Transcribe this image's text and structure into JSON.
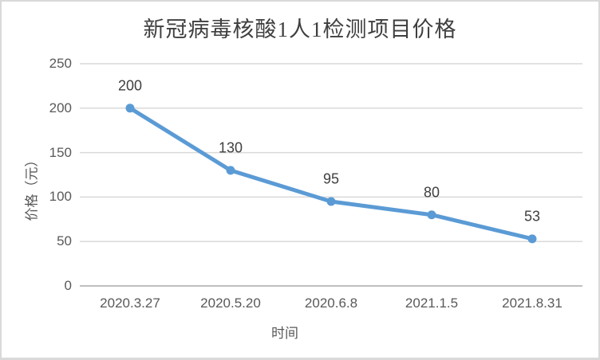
{
  "chart_data": {
    "type": "line",
    "title": "新冠病毒核酸1人1检测项目价格",
    "xlabel": "时间",
    "ylabel": "价格（元）",
    "categories": [
      "2020.3.27",
      "2020.5.20",
      "2020.6.8",
      "2021.1.5",
      "2021.8.31"
    ],
    "series": [
      {
        "name": "价格",
        "values": [
          200,
          130,
          95,
          80,
          53
        ]
      }
    ],
    "data_labels": [
      "200",
      "130",
      "95",
      "80",
      "53"
    ],
    "yticks": [
      0,
      50,
      100,
      150,
      200,
      250
    ],
    "ylim": [
      0,
      250
    ],
    "grid": true,
    "legend_position": "none",
    "colors": {
      "line": "#5b9bd5",
      "marker": "#5b9bd5",
      "grid": "#d9d9d9",
      "axis_line": "#bfbfbf",
      "tick_text": "#595959",
      "label_text": "#404040",
      "title_text": "#3f3f3f",
      "frame_border": "#d9d9d9",
      "background": "#ffffff"
    }
  }
}
